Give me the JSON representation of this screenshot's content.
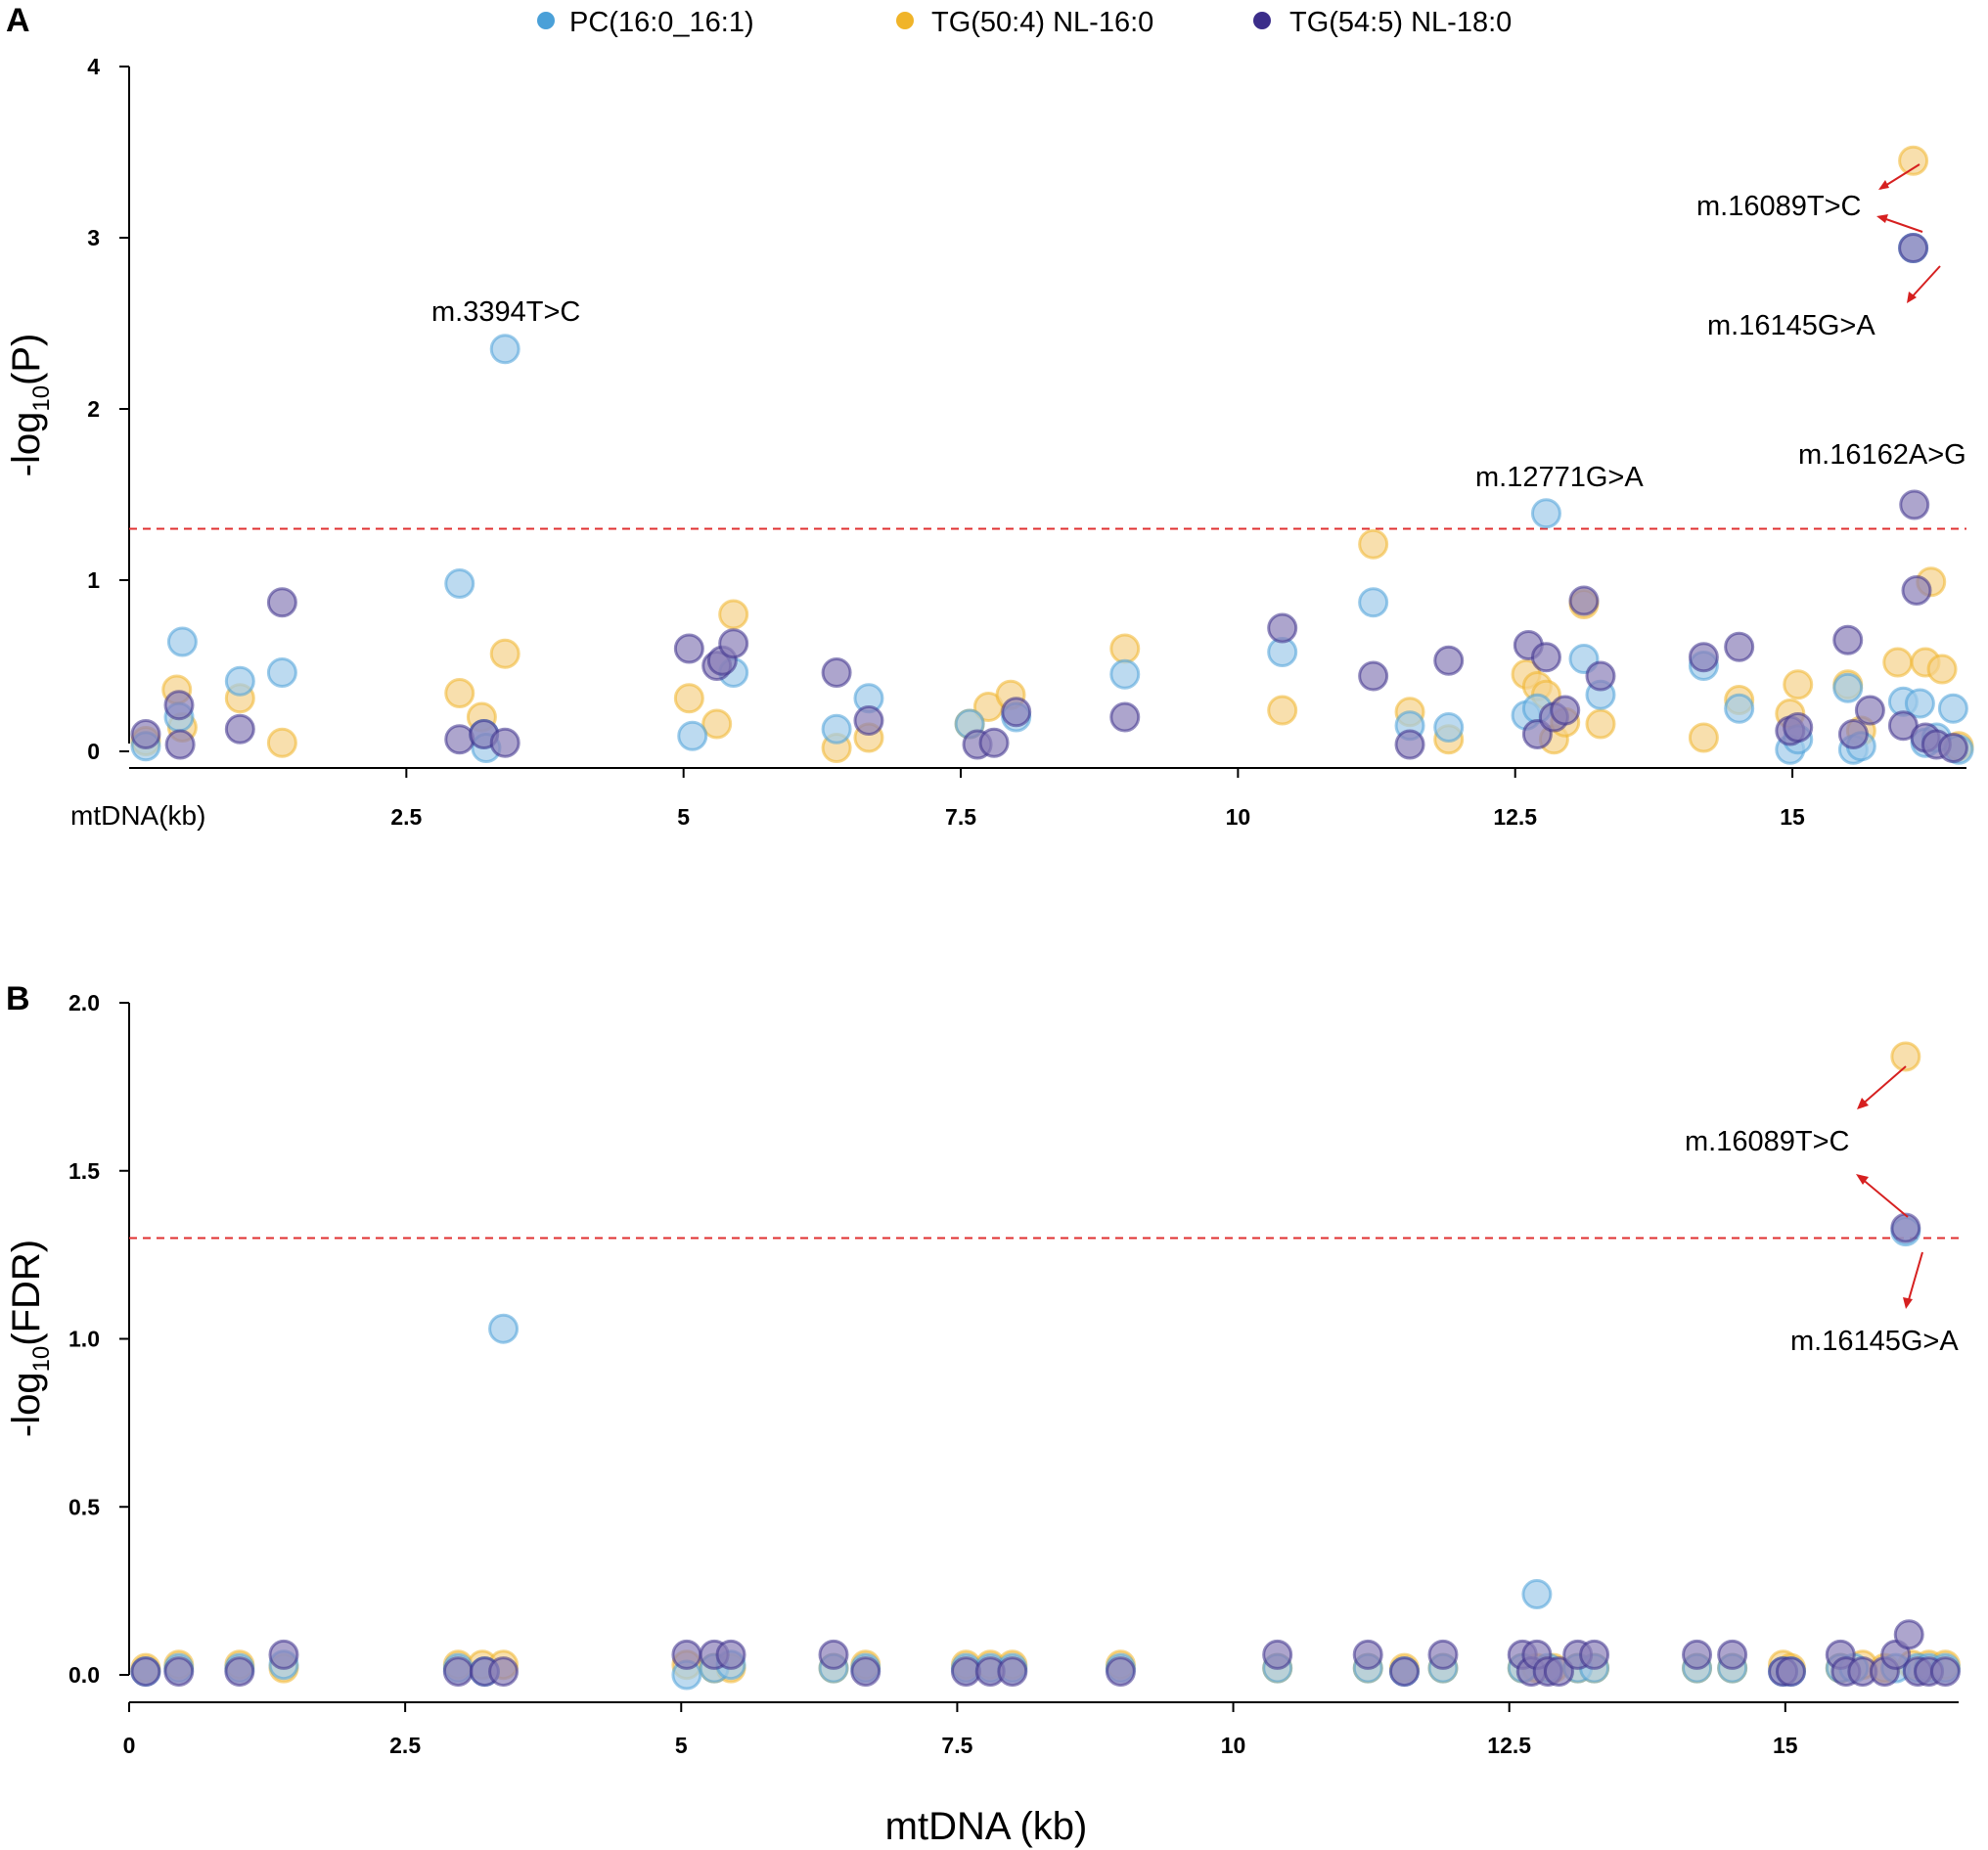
{
  "chart_data": [
    {
      "type": "scatter",
      "panel": "A",
      "title": "",
      "xlabel": "mtDNA(kb)",
      "ylabel": "-log10(P)",
      "ylabel_main": "-log",
      "ylabel_sub": "10",
      "ylabel_rest": "(P)",
      "xlim": [
        0,
        16.57
      ],
      "ylim": [
        0,
        4
      ],
      "xticks": [
        2.5,
        5,
        7.5,
        10,
        12.5,
        15
      ],
      "xtick_labels": [
        "2.5",
        "5",
        "7.5",
        "10",
        "12.5",
        "15"
      ],
      "yticks": [
        0,
        1,
        2,
        3,
        4
      ],
      "ytick_labels": [
        "0",
        "1",
        "2",
        "3",
        "4"
      ],
      "threshold": 1.3,
      "legend": {
        "position": "top",
        "entries": [
          {
            "label": "PC(16:0_16:1)",
            "color": "#4aa0d8"
          },
          {
            "label": "TG(50:4) NL-16:0",
            "color": "#f0b429"
          },
          {
            "label": "TG(54:5) NL-18:0",
            "color": "#3b2d8a"
          }
        ]
      },
      "series": [
        {
          "name": "PC(16:0_16:1)",
          "color": "#9fcaea",
          "edge": "#4aa0d8",
          "points": [
            [
              0.15,
              0.03
            ],
            [
              0.45,
              0.2
            ],
            [
              0.48,
              0.64
            ],
            [
              1.0,
              0.41
            ],
            [
              1.38,
              0.46
            ],
            [
              2.98,
              0.98
            ],
            [
              3.2,
              0.1
            ],
            [
              3.22,
              0.02
            ],
            [
              3.39,
              2.35
            ],
            [
              5.08,
              0.09
            ],
            [
              5.45,
              0.46
            ],
            [
              6.38,
              0.13
            ],
            [
              6.67,
              0.31
            ],
            [
              7.58,
              0.16
            ],
            [
              8.0,
              0.2
            ],
            [
              8.98,
              0.45
            ],
            [
              10.4,
              0.58
            ],
            [
              11.22,
              0.87
            ],
            [
              11.55,
              0.15
            ],
            [
              11.9,
              0.14
            ],
            [
              12.6,
              0.21
            ],
            [
              12.7,
              0.25
            ],
            [
              12.78,
              1.39
            ],
            [
              13.12,
              0.54
            ],
            [
              13.27,
              0.33
            ],
            [
              14.2,
              0.5
            ],
            [
              14.52,
              0.25
            ],
            [
              14.98,
              0.01
            ],
            [
              15.05,
              0.07
            ],
            [
              15.5,
              0.37
            ],
            [
              15.55,
              0.01
            ],
            [
              15.62,
              0.03
            ],
            [
              16.0,
              0.29
            ],
            [
              16.09,
              2.94
            ],
            [
              16.15,
              0.28
            ],
            [
              16.2,
              0.05
            ],
            [
              16.3,
              0.08
            ],
            [
              16.45,
              0.25
            ],
            [
              16.5,
              0.01
            ]
          ]
        },
        {
          "name": "TG(50:4) NL-16:0",
          "color": "#f5d28a",
          "edge": "#f0b429",
          "points": [
            [
              0.15,
              0.06
            ],
            [
              0.43,
              0.36
            ],
            [
              0.48,
              0.14
            ],
            [
              1.0,
              0.31
            ],
            [
              1.38,
              0.05
            ],
            [
              2.98,
              0.34
            ],
            [
              3.18,
              0.2
            ],
            [
              3.39,
              0.57
            ],
            [
              5.05,
              0.31
            ],
            [
              5.3,
              0.16
            ],
            [
              5.45,
              0.8
            ],
            [
              6.38,
              0.02
            ],
            [
              6.67,
              0.08
            ],
            [
              7.58,
              0.16
            ],
            [
              7.75,
              0.26
            ],
            [
              7.95,
              0.33
            ],
            [
              8.98,
              0.6
            ],
            [
              10.4,
              0.24
            ],
            [
              11.22,
              1.21
            ],
            [
              11.55,
              0.23
            ],
            [
              11.9,
              0.07
            ],
            [
              12.6,
              0.45
            ],
            [
              12.7,
              0.38
            ],
            [
              12.78,
              0.33
            ],
            [
              12.85,
              0.07
            ],
            [
              12.95,
              0.17
            ],
            [
              13.12,
              0.86
            ],
            [
              13.27,
              0.16
            ],
            [
              14.2,
              0.08
            ],
            [
              14.52,
              0.3
            ],
            [
              14.98,
              0.22
            ],
            [
              15.05,
              0.39
            ],
            [
              15.5,
              0.39
            ],
            [
              15.62,
              0.12
            ],
            [
              15.95,
              0.52
            ],
            [
              16.09,
              3.45
            ],
            [
              16.2,
              0.52
            ],
            [
              16.25,
              0.99
            ],
            [
              16.35,
              0.48
            ],
            [
              16.5,
              0.03
            ]
          ]
        },
        {
          "name": "TG(54:5) NL-18:0",
          "color": "#8a7fb8",
          "edge": "#3b2d8a",
          "points": [
            [
              0.15,
              0.1
            ],
            [
              0.45,
              0.27
            ],
            [
              0.46,
              0.04
            ],
            [
              1.0,
              0.13
            ],
            [
              1.38,
              0.87
            ],
            [
              2.98,
              0.07
            ],
            [
              3.2,
              0.1
            ],
            [
              3.39,
              0.05
            ],
            [
              5.05,
              0.6
            ],
            [
              5.3,
              0.5
            ],
            [
              5.35,
              0.53
            ],
            [
              5.45,
              0.63
            ],
            [
              6.38,
              0.46
            ],
            [
              6.67,
              0.18
            ],
            [
              7.65,
              0.04
            ],
            [
              7.8,
              0.05
            ],
            [
              8.0,
              0.23
            ],
            [
              8.98,
              0.2
            ],
            [
              10.4,
              0.72
            ],
            [
              11.22,
              0.44
            ],
            [
              11.55,
              0.04
            ],
            [
              11.9,
              0.53
            ],
            [
              12.62,
              0.62
            ],
            [
              12.7,
              0.1
            ],
            [
              12.78,
              0.55
            ],
            [
              12.85,
              0.2
            ],
            [
              12.95,
              0.24
            ],
            [
              13.12,
              0.88
            ],
            [
              13.27,
              0.44
            ],
            [
              14.2,
              0.55
            ],
            [
              14.52,
              0.61
            ],
            [
              14.98,
              0.12
            ],
            [
              15.05,
              0.14
            ],
            [
              15.5,
              0.65
            ],
            [
              15.55,
              0.1
            ],
            [
              15.7,
              0.24
            ],
            [
              16.0,
              0.15
            ],
            [
              16.09,
              2.94
            ],
            [
              16.1,
              1.44
            ],
            [
              16.12,
              0.94
            ],
            [
              16.2,
              0.08
            ],
            [
              16.3,
              0.04
            ],
            [
              16.45,
              0.02
            ]
          ]
        }
      ],
      "annotations": [
        {
          "text": "m.3394T>C"
        },
        {
          "text": "m.12771G>A"
        },
        {
          "text": "m.16089T>C"
        },
        {
          "text": "m.16145G>A"
        },
        {
          "text": "m.16162A>G"
        }
      ]
    },
    {
      "type": "scatter",
      "panel": "B",
      "title": "",
      "xlabel": "mtDNA (kb)",
      "ylabel": "-log10(FDR)",
      "ylabel_main": "-log",
      "ylabel_sub": "10",
      "ylabel_rest": "(FDR)",
      "xlim": [
        0,
        16.57
      ],
      "ylim": [
        0,
        2.0
      ],
      "xticks": [
        0,
        2.5,
        5,
        7.5,
        10,
        12.5,
        15
      ],
      "xtick_labels": [
        "0",
        "2.5",
        "5",
        "7.5",
        "10",
        "12.5",
        "15"
      ],
      "yticks": [
        0,
        0.5,
        1.0,
        1.5,
        2.0
      ],
      "ytick_labels": [
        "0.0",
        "0.5",
        "1.0",
        "1.5",
        "2.0"
      ],
      "threshold": 1.3,
      "series": [
        {
          "name": "PC(16:0_16:1)",
          "color": "#9fcaea",
          "edge": "#4aa0d8",
          "points": [
            [
              0.15,
              0.01
            ],
            [
              0.45,
              0.02
            ],
            [
              1.0,
              0.02
            ],
            [
              1.4,
              0.03
            ],
            [
              2.98,
              0.02
            ],
            [
              3.22,
              0.01
            ],
            [
              3.39,
              1.03
            ],
            [
              5.05,
              0.0
            ],
            [
              5.3,
              0.02
            ],
            [
              5.45,
              0.03
            ],
            [
              6.38,
              0.02
            ],
            [
              6.67,
              0.02
            ],
            [
              7.58,
              0.02
            ],
            [
              7.8,
              0.02
            ],
            [
              8.0,
              0.02
            ],
            [
              8.98,
              0.02
            ],
            [
              10.4,
              0.02
            ],
            [
              11.22,
              0.02
            ],
            [
              11.55,
              0.01
            ],
            [
              11.9,
              0.02
            ],
            [
              12.62,
              0.02
            ],
            [
              12.75,
              0.24
            ],
            [
              12.85,
              0.02
            ],
            [
              13.12,
              0.02
            ],
            [
              13.27,
              0.02
            ],
            [
              14.2,
              0.02
            ],
            [
              14.52,
              0.02
            ],
            [
              14.98,
              0.01
            ],
            [
              15.05,
              0.01
            ],
            [
              15.5,
              0.02
            ],
            [
              15.62,
              0.02
            ],
            [
              16.0,
              0.02
            ],
            [
              16.09,
              1.32
            ],
            [
              16.2,
              0.02
            ],
            [
              16.3,
              0.02
            ],
            [
              16.45,
              0.02
            ]
          ]
        },
        {
          "name": "TG(50:4) NL-16:0",
          "color": "#f5d28a",
          "edge": "#f0b429",
          "points": [
            [
              0.15,
              0.02
            ],
            [
              0.45,
              0.03
            ],
            [
              1.0,
              0.03
            ],
            [
              1.4,
              0.02
            ],
            [
              2.98,
              0.03
            ],
            [
              3.2,
              0.03
            ],
            [
              3.39,
              0.03
            ],
            [
              5.05,
              0.03
            ],
            [
              5.3,
              0.02
            ],
            [
              5.45,
              0.02
            ],
            [
              6.38,
              0.02
            ],
            [
              6.67,
              0.03
            ],
            [
              7.58,
              0.03
            ],
            [
              7.8,
              0.03
            ],
            [
              8.0,
              0.03
            ],
            [
              8.98,
              0.03
            ],
            [
              10.4,
              0.02
            ],
            [
              11.22,
              0.02
            ],
            [
              11.55,
              0.02
            ],
            [
              11.9,
              0.02
            ],
            [
              12.62,
              0.02
            ],
            [
              12.75,
              0.02
            ],
            [
              12.9,
              0.02
            ],
            [
              13.12,
              0.02
            ],
            [
              13.27,
              0.02
            ],
            [
              14.2,
              0.02
            ],
            [
              14.52,
              0.02
            ],
            [
              14.98,
              0.03
            ],
            [
              15.05,
              0.02
            ],
            [
              15.5,
              0.02
            ],
            [
              15.7,
              0.03
            ],
            [
              15.9,
              0.02
            ],
            [
              16.09,
              1.84
            ],
            [
              16.15,
              0.03
            ],
            [
              16.3,
              0.03
            ],
            [
              16.45,
              0.03
            ]
          ]
        },
        {
          "name": "TG(54:5) NL-18:0",
          "color": "#8a7fb8",
          "edge": "#3b2d8a",
          "points": [
            [
              0.15,
              0.01
            ],
            [
              0.45,
              0.01
            ],
            [
              1.0,
              0.01
            ],
            [
              1.4,
              0.06
            ],
            [
              2.98,
              0.01
            ],
            [
              3.22,
              0.01
            ],
            [
              3.39,
              0.01
            ],
            [
              5.05,
              0.06
            ],
            [
              5.3,
              0.06
            ],
            [
              5.45,
              0.06
            ],
            [
              6.38,
              0.06
            ],
            [
              6.67,
              0.01
            ],
            [
              7.58,
              0.01
            ],
            [
              7.8,
              0.01
            ],
            [
              8.0,
              0.01
            ],
            [
              8.98,
              0.01
            ],
            [
              10.4,
              0.06
            ],
            [
              11.22,
              0.06
            ],
            [
              11.55,
              0.01
            ],
            [
              11.9,
              0.06
            ],
            [
              12.62,
              0.06
            ],
            [
              12.7,
              0.01
            ],
            [
              12.75,
              0.06
            ],
            [
              12.85,
              0.01
            ],
            [
              12.95,
              0.01
            ],
            [
              13.12,
              0.06
            ],
            [
              13.27,
              0.06
            ],
            [
              14.2,
              0.06
            ],
            [
              14.52,
              0.06
            ],
            [
              14.98,
              0.01
            ],
            [
              15.05,
              0.01
            ],
            [
              15.5,
              0.06
            ],
            [
              15.55,
              0.01
            ],
            [
              15.7,
              0.01
            ],
            [
              15.9,
              0.01
            ],
            [
              16.0,
              0.06
            ],
            [
              16.09,
              1.33
            ],
            [
              16.12,
              0.12
            ],
            [
              16.2,
              0.01
            ],
            [
              16.3,
              0.01
            ],
            [
              16.45,
              0.01
            ]
          ]
        }
      ],
      "annotations": [
        {
          "text": "m.16089T>C"
        },
        {
          "text": "m.16145G>A"
        }
      ]
    }
  ],
  "panel_labels": {
    "a": "A",
    "b": "B"
  }
}
